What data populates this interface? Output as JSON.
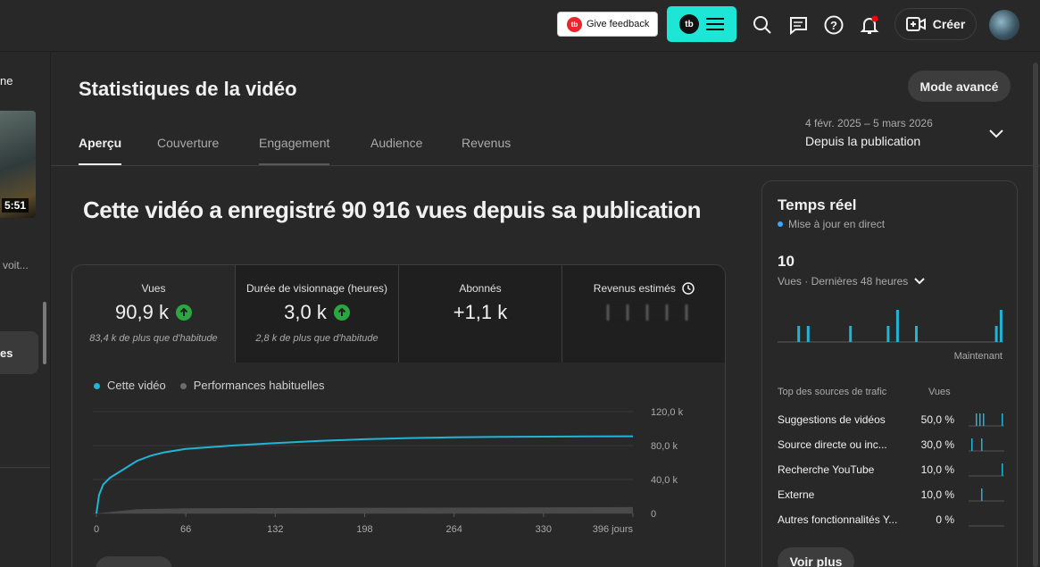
{
  "topbar": {
    "feedback_label": "Give feedback",
    "tb_logo": "tb",
    "create_label": "Créer"
  },
  "left": {
    "truncated_title": "ne",
    "duration": "5:51",
    "truncated_text": "voit...",
    "nav_selected": "es"
  },
  "page": {
    "title": "Statistiques de la vidéo",
    "advanced_button": "Mode avancé",
    "tabs": [
      "Aperçu",
      "Couverture",
      "Engagement",
      "Audience",
      "Revenus"
    ],
    "date_range": "4 févr. 2025 – 5 mars 2026",
    "date_period": "Depuis la publication",
    "headline": "Cette vidéo a enregistré 90 916 vues depuis sa publication"
  },
  "metrics": [
    {
      "label": "Vues",
      "value": "90,9 k",
      "sub": "83,4 k de plus que d'habitude"
    },
    {
      "label": "Durée de visionnage (heures)",
      "value": "3,0 k",
      "sub": "2,8 k de plus que d'habitude"
    },
    {
      "label": "Abonnés",
      "value": "+1,1 k",
      "sub": ""
    },
    {
      "label": "Revenus estimés",
      "value": "",
      "sub": ""
    }
  ],
  "legend": {
    "this_video": "Cette vidéo",
    "typical": "Performances habituelles"
  },
  "colors": {
    "accent": "#1fb5d6",
    "typical": "#6b6b6b",
    "up": "#2ba640",
    "live": "#3ea6ff"
  },
  "chart_data": {
    "type": "line",
    "x_ticks": [
      "0",
      "66",
      "132",
      "198",
      "264",
      "330",
      "396 jours"
    ],
    "y_ticks": [
      "120,0 k",
      "80,0 k",
      "40,0 k",
      "0"
    ],
    "ylim": [
      0,
      120000
    ],
    "xlim": [
      0,
      396
    ],
    "series": [
      {
        "name": "Cette vidéo",
        "points": [
          [
            0,
            0
          ],
          [
            2,
            22000
          ],
          [
            5,
            34000
          ],
          [
            10,
            42000
          ],
          [
            20,
            52000
          ],
          [
            30,
            62000
          ],
          [
            40,
            68000
          ],
          [
            50,
            72000
          ],
          [
            66,
            76000
          ],
          [
            100,
            80000
          ],
          [
            132,
            83000
          ],
          [
            165,
            85500
          ],
          [
            198,
            87500
          ],
          [
            231,
            88800
          ],
          [
            264,
            89700
          ],
          [
            297,
            90200
          ],
          [
            330,
            90500
          ],
          [
            363,
            90700
          ],
          [
            396,
            90916
          ]
        ]
      },
      {
        "name": "Performances habituelles",
        "points": [
          [
            0,
            0
          ],
          [
            30,
            5000
          ],
          [
            66,
            6000
          ],
          [
            396,
            7500
          ]
        ]
      }
    ]
  },
  "realtime": {
    "title": "Temps réel",
    "live": "Mise à jour en direct",
    "count": "10",
    "sub": "Vues · Dernières 48 heures",
    "bars": [
      0,
      0,
      0,
      0,
      2,
      0,
      2,
      0,
      0,
      0,
      0,
      0,
      0,
      0,
      0,
      2,
      0,
      0,
      0,
      0,
      0,
      0,
      0,
      2,
      0,
      4,
      0,
      0,
      0,
      2,
      0,
      0,
      0,
      0,
      0,
      0,
      0,
      0,
      0,
      0,
      0,
      0,
      0,
      0,
      0,
      0,
      2,
      4
    ],
    "now": "Maintenant",
    "header_sources": "Top des sources de trafic",
    "header_views": "Vues",
    "sources": [
      {
        "name": "Suggestions de vidéos",
        "pct": "50,0 %"
      },
      {
        "name": "Source directe ou inc...",
        "pct": "30,0 %"
      },
      {
        "name": "Recherche YouTube",
        "pct": "10,0 %"
      },
      {
        "name": "Externe",
        "pct": "10,0 %"
      },
      {
        "name": "Autres fonctionnalités Y...",
        "pct": "0 %"
      }
    ],
    "more_button": "Voir plus"
  }
}
